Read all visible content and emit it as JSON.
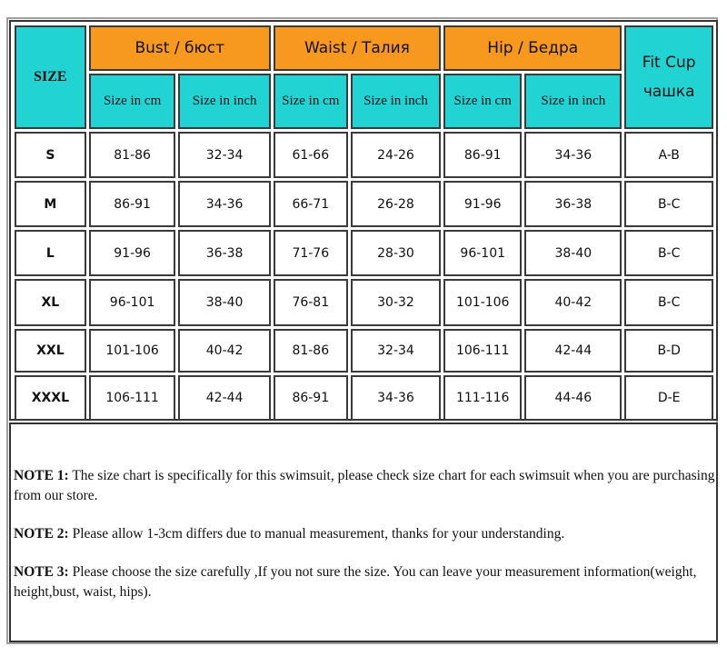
{
  "table": {
    "size_header": "SIZE",
    "groups": [
      "Bust / бюст",
      "Waist / Талия",
      "Hip / Бедра"
    ],
    "cup_header": [
      "Fit Cup",
      "чашка"
    ],
    "sub_headers": [
      "Size in cm",
      "Size in inch",
      "Size in cm",
      "Size in inch",
      "Size in cm",
      "Size in inch"
    ],
    "rows": [
      [
        "S",
        "81-86",
        "32-34",
        "61-66",
        "24-26",
        "86-91",
        "34-36",
        "A-B"
      ],
      [
        "M",
        "86-91",
        "34-36",
        "66-71",
        "26-28",
        "91-96",
        "36-38",
        "B-C"
      ],
      [
        "L",
        "91-96",
        "36-38",
        "71-76",
        "28-30",
        "96-101",
        "38-40",
        "B-C"
      ],
      [
        "XL",
        "96-101",
        "38-40",
        "76-81",
        "30-32",
        "101-106",
        "40-42",
        "B-C"
      ],
      [
        "XXL",
        "101-106",
        "40-42",
        "81-86",
        "32-34",
        "106-111",
        "42-44",
        "B-D"
      ],
      [
        "XXXL",
        "106-111",
        "42-44",
        "86-91",
        "34-36",
        "111-116",
        "44-46",
        "D-E"
      ]
    ]
  },
  "notes": [
    {
      "label": "NOTE 1:",
      "text": " The size chart is specifically for this swimsuit, please check size chart for each swimsuit when you are purchasing from our store."
    },
    {
      "label": "NOTE 2:",
      "text": " Please allow 1-3cm differs due to manual measurement, thanks for your understanding."
    },
    {
      "label": "NOTE 3:",
      "text": " Please choose the size carefully ,If you not sure the size. You can leave your measurement information(weight, height,bust, waist, hips)."
    }
  ],
  "colors": {
    "header_cyan": "#22d3d3",
    "header_orange": "#f7991f"
  }
}
